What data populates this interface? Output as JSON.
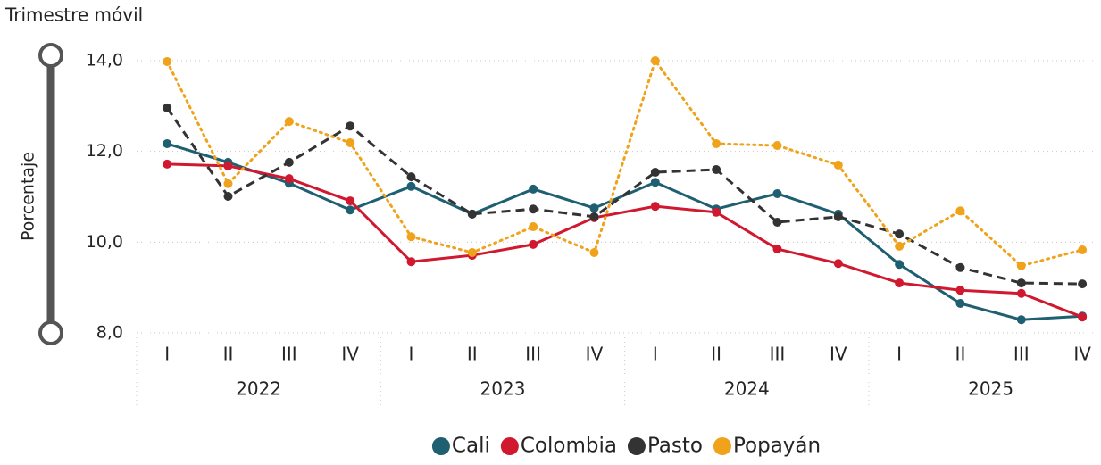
{
  "slicer_label": "Trimestre móvil",
  "chart_data": {
    "type": "line",
    "y_label": "Porcentaje",
    "categories": [
      "I",
      "II",
      "III",
      "IV",
      "I",
      "II",
      "III",
      "IV",
      "I",
      "II",
      "III",
      "IV",
      "I",
      "II",
      "III",
      "IV"
    ],
    "category_groups": [
      "2022",
      "2023",
      "2024",
      "2025"
    ],
    "ylim": [
      8,
      14
    ],
    "yticks": [
      {
        "value": 8,
        "label": "8,0"
      },
      {
        "value": 10,
        "label": "10,0"
      },
      {
        "value": 12,
        "label": "12,0"
      },
      {
        "value": 14,
        "label": "14,0"
      }
    ],
    "grid": true,
    "legend": "bottom",
    "series": [
      {
        "name": "Cali",
        "color": "#1f5f72",
        "dash": "solid",
        "values": [
          12.17,
          11.76,
          11.3,
          10.71,
          11.23,
          10.62,
          11.17,
          10.75,
          11.32,
          10.73,
          11.07,
          10.62,
          9.51,
          8.65,
          8.29,
          8.37
        ]
      },
      {
        "name": "Colombia",
        "color": "#d0192f",
        "dash": "solid",
        "values": [
          11.72,
          11.68,
          11.4,
          10.91,
          9.57,
          9.71,
          9.95,
          10.54,
          10.79,
          10.66,
          9.85,
          9.53,
          9.1,
          8.94,
          8.87,
          8.35
        ]
      },
      {
        "name": "Pasto",
        "color": "#333333",
        "dash": "dashed",
        "values": [
          12.96,
          11.01,
          11.76,
          12.56,
          11.44,
          10.62,
          10.73,
          10.56,
          11.54,
          11.6,
          10.44,
          10.56,
          10.18,
          9.44,
          9.1,
          9.08
        ]
      },
      {
        "name": "Popayán",
        "color": "#f0a21a",
        "dash": "dotted",
        "values": [
          13.98,
          11.29,
          12.66,
          12.19,
          10.12,
          9.77,
          10.34,
          9.77,
          14.0,
          12.17,
          12.13,
          11.7,
          9.91,
          10.69,
          9.48,
          9.83
        ]
      }
    ]
  }
}
